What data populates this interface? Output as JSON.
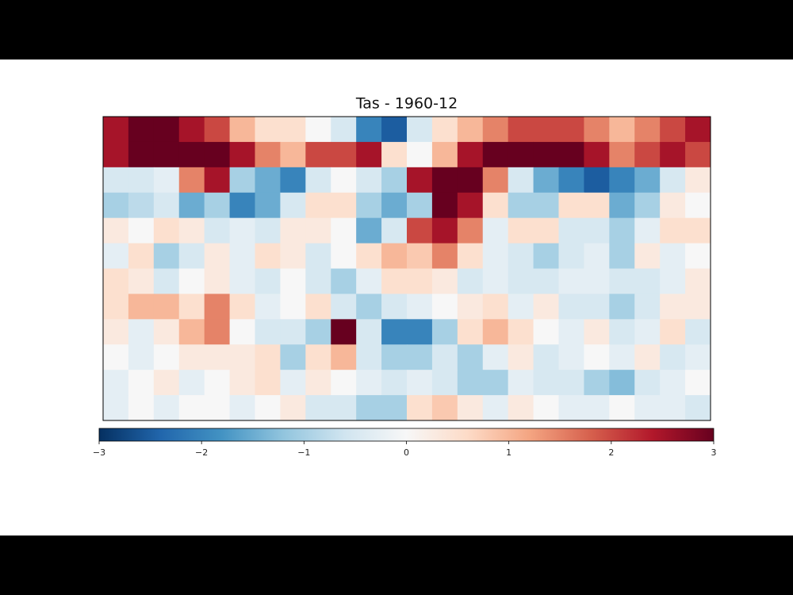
{
  "chart_data": {
    "type": "heatmap",
    "title": "Tas - 1960-12",
    "colormap": "RdBu_r",
    "zlim": [
      -3,
      3
    ],
    "colorbar_ticks": [
      {
        "value": -3,
        "label": "−3"
      },
      {
        "value": -2,
        "label": "−2"
      },
      {
        "value": -1,
        "label": "−1"
      },
      0,
      1,
      2,
      3
    ],
    "values": [
      [
        2.5,
        3,
        3,
        2.5,
        2,
        1,
        0.5,
        0.5,
        0,
        -0.5,
        -2,
        -2.5,
        -0.5,
        0.5,
        1,
        1.5,
        2,
        2,
        2,
        1.5,
        1,
        1.5,
        2,
        2.5
      ],
      [
        2.5,
        3,
        3,
        3,
        3,
        2.5,
        1.5,
        1,
        2,
        2,
        2.5,
        0.5,
        0,
        1,
        2.5,
        3,
        3,
        3,
        3,
        2.5,
        1.5,
        2,
        2.5,
        2
      ],
      [
        -0.5,
        -0.5,
        -0.3,
        1.5,
        2.5,
        -1,
        -1.5,
        -2,
        -0.5,
        0,
        -0.5,
        -1,
        2.5,
        3,
        3,
        1.5,
        -0.5,
        -1.5,
        -2,
        -2.5,
        -2,
        -1.5,
        -0.5,
        0.3
      ],
      [
        -1,
        -0.8,
        -0.5,
        -1.5,
        -1,
        -2,
        -1.5,
        -0.5,
        0.5,
        0.5,
        -1,
        -1.5,
        -1,
        3,
        2.5,
        0.5,
        -1,
        -1,
        0.5,
        0.5,
        -1.5,
        -1,
        0.3,
        0
      ],
      [
        0.3,
        0,
        0.5,
        0.3,
        -0.5,
        -0.3,
        -0.5,
        0.3,
        0.3,
        0,
        -1.5,
        -0.5,
        2,
        2.5,
        1.5,
        -0.3,
        0.5,
        0.5,
        -0.5,
        -0.5,
        -1,
        -0.3,
        0.5,
        0.5
      ],
      [
        -0.3,
        0.5,
        -1,
        -0.5,
        0.3,
        -0.3,
        0.5,
        0.3,
        -0.5,
        0,
        0.5,
        1,
        0.8,
        1.5,
        0.5,
        -0.3,
        -0.5,
        -1,
        -0.5,
        -0.3,
        -1,
        0.3,
        -0.3,
        0
      ],
      [
        0.5,
        0.3,
        -0.5,
        0,
        0.3,
        -0.3,
        -0.5,
        0,
        -0.5,
        -1,
        -0.3,
        0.5,
        0.5,
        0.3,
        -0.5,
        -0.3,
        -0.5,
        -0.5,
        -0.3,
        -0.3,
        -0.5,
        -0.5,
        -0.3,
        0.3
      ],
      [
        0.5,
        1,
        1,
        0.5,
        1.5,
        0.5,
        -0.3,
        0,
        0.5,
        -0.5,
        -1,
        -0.5,
        -0.3,
        0,
        0.3,
        0.5,
        -0.3,
        0.3,
        -0.5,
        -0.5,
        -1,
        -0.5,
        0.3,
        0.3
      ],
      [
        0.3,
        -0.3,
        0.3,
        1,
        1.5,
        0,
        -0.5,
        -0.5,
        -1,
        3,
        -0.5,
        -2,
        -2,
        -1,
        0.5,
        1,
        0.5,
        0,
        -0.3,
        0.3,
        -0.5,
        -0.3,
        0.5,
        -0.5
      ],
      [
        0,
        -0.3,
        0,
        0.3,
        0.3,
        0.3,
        0.5,
        -1,
        0.5,
        1,
        -0.5,
        -1,
        -1,
        -0.5,
        -1,
        -0.3,
        0.3,
        -0.5,
        -0.3,
        0,
        -0.3,
        0.3,
        -0.5,
        -0.3
      ],
      [
        -0.3,
        0,
        0.3,
        -0.3,
        0,
        0.3,
        0.5,
        -0.3,
        0.3,
        0,
        -0.3,
        -0.5,
        -0.3,
        -0.5,
        -1,
        -1,
        -0.3,
        -0.5,
        -0.5,
        -1,
        -1.3,
        -0.5,
        -0.3,
        0
      ],
      [
        -0.3,
        0,
        -0.3,
        0,
        0,
        -0.3,
        0,
        0.3,
        -0.5,
        -0.5,
        -1,
        -1,
        0.5,
        0.8,
        0.3,
        -0.3,
        0.3,
        0,
        -0.3,
        -0.3,
        0,
        -0.3,
        -0.3,
        -0.5
      ]
    ]
  }
}
